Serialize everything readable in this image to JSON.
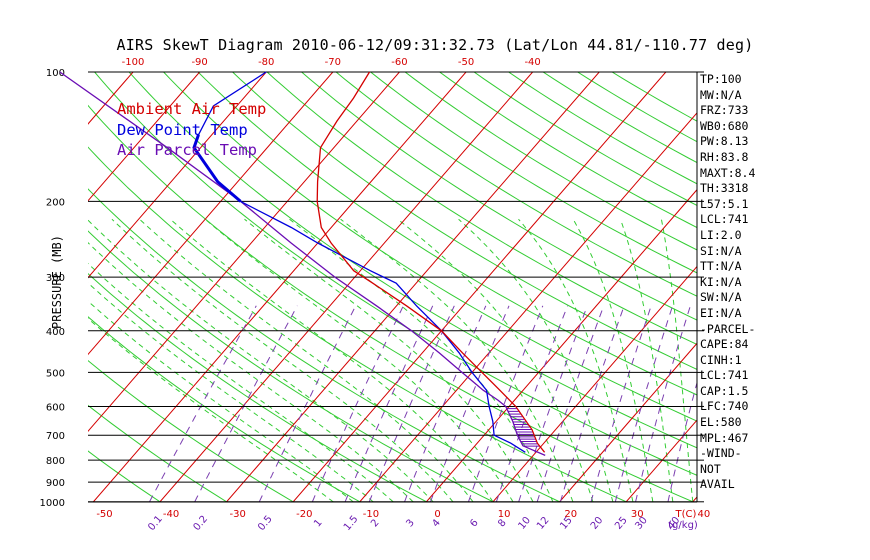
{
  "header": {
    "title": "AIRS SkewT Diagram 2010-06-12/09:31:32.73 (Lat/Lon 44.81/-110.77 deg)"
  },
  "legend": [
    {
      "label": "Ambient Air Temp",
      "color": "#d40000"
    },
    {
      "label": "Dew Point Temp",
      "color": "#0000dd"
    },
    {
      "label": "Air Parcel Temp",
      "color": "#6a0db4"
    }
  ],
  "stats": [
    "TP:100",
    "MW:N/A",
    "FRZ:733",
    "WB0:680",
    "PW:8.13",
    "RH:83.8",
    "MAXT:8.4",
    "TH:3318",
    "L57:5.1",
    "LCL:741",
    "LI:2.0",
    "SI:N/A",
    "TT:N/A",
    "KI:N/A",
    "SW:N/A",
    "EI:N/A",
    "-PARCEL-",
    "CAPE:84",
    "CINH:1",
    "LCL:741",
    "CAP:1.5",
    "LFC:740",
    "EL:580",
    "MPL:467",
    "-WIND-",
    "NOT",
    "AVAIL"
  ],
  "chart_data": {
    "type": "skewt",
    "ylabel": "PRESSURE (MB)",
    "y_scale": "log",
    "pressure_levels": [
      100,
      200,
      300,
      400,
      500,
      600,
      700,
      800,
      900,
      1000
    ],
    "top_temp_ticks": [
      -120,
      -110,
      -100,
      -90,
      -80,
      -70,
      -60,
      -50,
      -40
    ],
    "bottom_temp_ticks": [
      "-50",
      "-40",
      "-30",
      "-20",
      "-10",
      "0",
      "10",
      "20",
      "30",
      "40"
    ],
    "bottom_temp_unit": "T(C)",
    "mixing_ratio_ticks": [
      "0.1",
      "0.2",
      "0.5",
      "1",
      "1.5",
      "2",
      "3",
      "4",
      "6",
      "8",
      "10",
      "12",
      "15",
      "20",
      "25",
      "30",
      "40"
    ],
    "mixing_ratio_unit": "(g/kg)",
    "ambient_air_temp": [
      {
        "p": 767,
        "t": 11.3
      },
      {
        "p": 730,
        "t": 9.0
      },
      {
        "p": 680,
        "t": 6.5
      },
      {
        "p": 600,
        "t": 1.0
      },
      {
        "p": 550,
        "t": -3.5
      },
      {
        "p": 500,
        "t": -8.5
      },
      {
        "p": 450,
        "t": -14.0
      },
      {
        "p": 400,
        "t": -20.0
      },
      {
        "p": 350,
        "t": -28.5
      },
      {
        "p": 310,
        "t": -36.5
      },
      {
        "p": 290,
        "t": -41.0
      },
      {
        "p": 250,
        "t": -48.0
      },
      {
        "p": 230,
        "t": -51.5
      },
      {
        "p": 200,
        "t": -55.5
      },
      {
        "p": 180,
        "t": -58.0
      },
      {
        "p": 150,
        "t": -62.0
      },
      {
        "p": 130,
        "t": -63.0
      },
      {
        "p": 115,
        "t": -63.5
      },
      {
        "p": 100,
        "t": -64.5
      }
    ],
    "dew_point_temp": [
      {
        "p": 767,
        "t": 8.4
      },
      {
        "p": 730,
        "t": 5.0
      },
      {
        "p": 700,
        "t": 1.5
      },
      {
        "p": 650,
        "t": -0.5
      },
      {
        "p": 600,
        "t": -3.0
      },
      {
        "p": 550,
        "t": -5.5
      },
      {
        "p": 500,
        "t": -10.0
      },
      {
        "p": 450,
        "t": -14.5
      },
      {
        "p": 400,
        "t": -20.0
      },
      {
        "p": 350,
        "t": -27.0
      },
      {
        "p": 310,
        "t": -33.0
      },
      {
        "p": 290,
        "t": -38.5
      },
      {
        "p": 250,
        "t": -50.0
      },
      {
        "p": 230,
        "t": -56.0
      },
      {
        "p": 200,
        "t": -67.0
      },
      {
        "p": 180,
        "t": -73.0
      },
      {
        "p": 150,
        "t": -81.0
      },
      {
        "p": 140,
        "t": -82.0
      },
      {
        "p": 120,
        "t": -83.5
      },
      {
        "p": 100,
        "t": -80.0
      }
    ],
    "air_parcel_temp": [
      {
        "p": 780,
        "t": 11.8
      },
      {
        "p": 741,
        "t": 7.2
      },
      {
        "p": 700,
        "t": 5.0
      },
      {
        "p": 650,
        "t": 2.5
      },
      {
        "p": 600,
        "t": -0.5
      },
      {
        "p": 580,
        "t": -2.5
      },
      {
        "p": 550,
        "t": -6.0
      },
      {
        "p": 500,
        "t": -11.5
      },
      {
        "p": 450,
        "t": -17.5
      },
      {
        "p": 400,
        "t": -24.5
      },
      {
        "p": 350,
        "t": -33.0
      },
      {
        "p": 300,
        "t": -43.0
      },
      {
        "p": 250,
        "t": -54.0
      },
      {
        "p": 200,
        "t": -67.0
      },
      {
        "p": 150,
        "t": -85.0
      },
      {
        "p": 100,
        "t": -111.0
      }
    ]
  }
}
